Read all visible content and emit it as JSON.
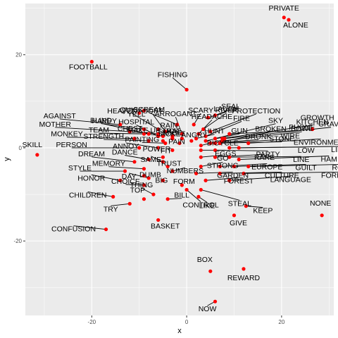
{
  "chart_data": {
    "type": "scatter",
    "xlabel": "x",
    "ylabel": "y",
    "xlim": [
      -34,
      31
    ],
    "ylim": [
      -36,
      31
    ],
    "x_ticks": [
      -20,
      0,
      20
    ],
    "y_ticks": [
      -20,
      0,
      20
    ],
    "grid": true,
    "point_color": "#ff0000",
    "points": [
      {
        "label": "PRIVATE",
        "x": 20.5,
        "y": 28
      },
      {
        "label": "ALONE",
        "x": 21.5,
        "y": 27.5
      },
      {
        "label": "FOOTBALL",
        "x": -20,
        "y": 18.5
      },
      {
        "label": "FISHING",
        "x": 0,
        "y": 12.5
      },
      {
        "label": "LAUGH",
        "x": 4.5,
        "y": 6.5
      },
      {
        "label": "SEAL",
        "x": 6,
        "y": 7
      },
      {
        "label": "SCREAM",
        "x": -2,
        "y": 5
      },
      {
        "label": "SCARY",
        "x": 1.5,
        "y": 5
      },
      {
        "label": "RIVER",
        "x": 3.5,
        "y": 4
      },
      {
        "label": "PROTECTION",
        "x": 5,
        "y": 3.5
      },
      {
        "label": "QUICK",
        "x": -6,
        "y": 4
      },
      {
        "label": "SOFT",
        "x": -4.5,
        "y": 3.5
      },
      {
        "label": "ARROGANT",
        "x": -1,
        "y": 3
      },
      {
        "label": "HEADACHE",
        "x": 2.5,
        "y": 3
      },
      {
        "label": "FIRE",
        "x": 4,
        "y": 2.5
      },
      {
        "label": "SKY",
        "x": 6,
        "y": 2
      },
      {
        "label": "KITCHEN",
        "x": 7.5,
        "y": 2
      },
      {
        "label": "HAPPY",
        "x": -8,
        "y": 3
      },
      {
        "label": "HOSPITAL",
        "x": -6,
        "y": 2.5
      },
      {
        "label": "RAIN",
        "x": -3,
        "y": 2
      },
      {
        "label": "GUN",
        "x": 4,
        "y": 1.5
      },
      {
        "label": "BROKEN",
        "x": 6,
        "y": 1
      },
      {
        "label": "BOWL",
        "x": 7.5,
        "y": 1.5
      },
      {
        "label": "GRAVE",
        "x": 8,
        "y": 2
      },
      {
        "label": "HEAVEN",
        "x": -9,
        "y": 8
      },
      {
        "label": "YELL",
        "x": -10,
        "y": 7.5
      },
      {
        "label": "JUICE",
        "x": -5,
        "y": 1.5
      },
      {
        "label": "RAT",
        "x": -1,
        "y": 2
      },
      {
        "label": "ANGRY",
        "x": 1,
        "y": 1.5
      },
      {
        "label": "DRUNK",
        "x": 5,
        "y": 1
      },
      {
        "label": "WIRE",
        "x": 7,
        "y": 1
      },
      {
        "label": "GROWTH",
        "x": 26.5,
        "y": 4
      },
      {
        "label": "AGAINST",
        "x": -14,
        "y": 5
      },
      {
        "label": "BLIND",
        "x": -9,
        "y": 4
      },
      {
        "label": "CHEST",
        "x": -6,
        "y": 3
      },
      {
        "label": "JACKET",
        "x": -3,
        "y": 2.5
      },
      {
        "label": "HUNT",
        "x": 2,
        "y": 2
      },
      {
        "label": "PHONE",
        "x": 9,
        "y": 3
      },
      {
        "label": "MOTHER",
        "x": -12,
        "y": 3.5
      },
      {
        "label": "TEAM",
        "x": -9,
        "y": 3
      },
      {
        "label": "MAKE UP",
        "x": -5,
        "y": 2.5
      },
      {
        "label": "STICK",
        "x": -3,
        "y": 2
      },
      {
        "label": "PAIN",
        "x": -1.5,
        "y": 1
      },
      {
        "label": "BICYCLE",
        "x": 3,
        "y": 0.5
      },
      {
        "label": "STONE",
        "x": 7,
        "y": 1
      },
      {
        "label": "ENVIRONMENT",
        "x": 13,
        "y": 1
      },
      {
        "label": "MONKEY",
        "x": -11,
        "y": 2
      },
      {
        "label": "STRENGTH",
        "x": -8,
        "y": 1.5
      },
      {
        "label": "PAINTING",
        "x": -4.5,
        "y": 1
      },
      {
        "label": "SKILL",
        "x": -31.5,
        "y": -1.5
      },
      {
        "label": "PERSON",
        "x": -10,
        "y": 0
      },
      {
        "label": "ANNOY",
        "x": -6,
        "y": 0
      },
      {
        "label": "FIT",
        "x": -3,
        "y": -0.5
      },
      {
        "label": "EGGS",
        "x": 3,
        "y": -0.5
      },
      {
        "label": "PARTY",
        "x": 6,
        "y": -0.5
      },
      {
        "label": "LOW",
        "x": 9,
        "y": 0
      },
      {
        "label": "LIFE",
        "x": 11,
        "y": 0
      },
      {
        "label": "DREAM",
        "x": -11,
        "y": -3
      },
      {
        "label": "DANCE",
        "x": -8,
        "y": -2.5
      },
      {
        "label": "POWER",
        "x": -5,
        "y": -2
      },
      {
        "label": "SAME",
        "x": -5,
        "y": -3
      },
      {
        "label": "GO",
        "x": 3,
        "y": -2
      },
      {
        "label": "RARE",
        "x": 6,
        "y": -2
      },
      {
        "label": "LINE",
        "x": 9,
        "y": -2
      },
      {
        "label": "HAM",
        "x": 11,
        "y": -2.5
      },
      {
        "label": "STYLE",
        "x": -13,
        "y": -5
      },
      {
        "label": "MEMORY",
        "x": -9,
        "y": -4.5
      },
      {
        "label": "DUMB",
        "x": -9,
        "y": -6
      },
      {
        "label": "TRUST",
        "x": -4,
        "y": -4
      },
      {
        "label": "STRONG",
        "x": 3,
        "y": -4
      },
      {
        "label": "EUROPE",
        "x": 7,
        "y": -4
      },
      {
        "label": "GUILT",
        "x": 10,
        "y": -4
      },
      {
        "label": "ROOM",
        "x": 13,
        "y": -4
      },
      {
        "label": "HONOR",
        "x": -14,
        "y": -7
      },
      {
        "label": "DAY",
        "x": -8,
        "y": -6.5
      },
      {
        "label": "NUMBERS",
        "x": -3,
        "y": -5
      },
      {
        "label": "GARDEN",
        "x": 2,
        "y": -5.5
      },
      {
        "label": "CULTURE",
        "x": 7,
        "y": -5.5
      },
      {
        "label": "FOREIGN",
        "x": 12,
        "y": -5.5
      },
      {
        "label": "CHILDREN",
        "x": -15.5,
        "y": -10.5
      },
      {
        "label": "CHOICE",
        "x": -9,
        "y": -8
      },
      {
        "label": "BIG",
        "x": -5,
        "y": -7
      },
      {
        "label": "FORM",
        "x": -1,
        "y": -8
      },
      {
        "label": "FOREST",
        "x": 4,
        "y": -7
      },
      {
        "label": "LANGUAGE",
        "x": 9,
        "y": -7
      },
      {
        "label": "TRY",
        "x": -12,
        "y": -12
      },
      {
        "label": "THING",
        "x": -7,
        "y": -10
      },
      {
        "label": "CONTROL",
        "x": 0,
        "y": -9
      },
      {
        "label": "STEAL",
        "x": 3,
        "y": -9
      },
      {
        "label": "NONE",
        "x": 28.5,
        "y": -14.5
      },
      {
        "label": "TOP",
        "x": -9,
        "y": -11
      },
      {
        "label": "BILL",
        "x": -4,
        "y": -11
      },
      {
        "label": "LIKE",
        "x": 2.5,
        "y": -10.5
      },
      {
        "label": "KEEP",
        "x": 12.5,
        "y": -12.5
      },
      {
        "label": "GIVE",
        "x": 10,
        "y": -14.5
      },
      {
        "label": "CONFUSION",
        "x": -17,
        "y": -17.5
      },
      {
        "label": "BASKET",
        "x": -6,
        "y": -15.5
      },
      {
        "label": "BOX",
        "x": 5,
        "y": -26.5
      },
      {
        "label": "REWARD",
        "x": 12,
        "y": -26
      },
      {
        "label": "NOW",
        "x": 6,
        "y": -33
      }
    ]
  }
}
